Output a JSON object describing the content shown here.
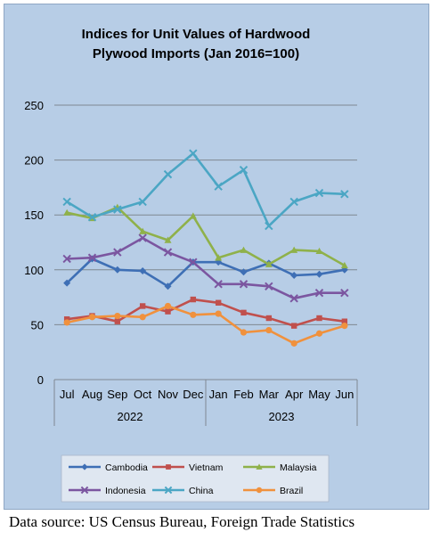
{
  "chart_data": {
    "type": "line",
    "title_lines": [
      "Indices for Unit Values of Hardwood",
      "Plywood Imports (Jan 2016=100)"
    ],
    "x": [
      "Jul",
      "Aug",
      "Sep",
      "Oct",
      "Nov",
      "Dec",
      "Jan",
      "Feb",
      "Mar",
      "Apr",
      "May",
      "Jun"
    ],
    "year_groups": [
      {
        "label": "2022",
        "from": 0,
        "to": 5
      },
      {
        "label": "2023",
        "from": 6,
        "to": 11
      }
    ],
    "ylim": [
      0,
      250
    ],
    "yticks": [
      0,
      50,
      100,
      150,
      200,
      250
    ],
    "grid": true,
    "legend_position": "bottom",
    "series": [
      {
        "name": "Cambodia",
        "color": "#3e6fb5",
        "marker": "diamond",
        "values": [
          88,
          110,
          100,
          99,
          85,
          107,
          107,
          98,
          106,
          95,
          96,
          100
        ]
      },
      {
        "name": "Vietnam",
        "color": "#c0504d",
        "marker": "square",
        "values": [
          55,
          58,
          53,
          67,
          62,
          73,
          70,
          61,
          56,
          49,
          56,
          53
        ]
      },
      {
        "name": "Malaysia",
        "color": "#8fb14a",
        "marker": "triangle",
        "values": [
          152,
          147,
          157,
          135,
          127,
          149,
          111,
          118,
          105,
          118,
          117,
          104
        ]
      },
      {
        "name": "Indonesia",
        "color": "#7b56a0",
        "marker": "x",
        "values": [
          110,
          111,
          116,
          129,
          116,
          107,
          87,
          87,
          85,
          74,
          79,
          79
        ]
      },
      {
        "name": "China",
        "color": "#4ba6c4",
        "marker": "x",
        "values": [
          162,
          148,
          155,
          162,
          187,
          206,
          176,
          191,
          140,
          162,
          170,
          169
        ]
      },
      {
        "name": "Brazil",
        "color": "#f0913d",
        "marker": "circle",
        "values": [
          52,
          57,
          58,
          57,
          67,
          59,
          60,
          43,
          45,
          33,
          42,
          49
        ]
      }
    ]
  },
  "source": "Data source: US Census Bureau, Foreign Trade Statistics"
}
